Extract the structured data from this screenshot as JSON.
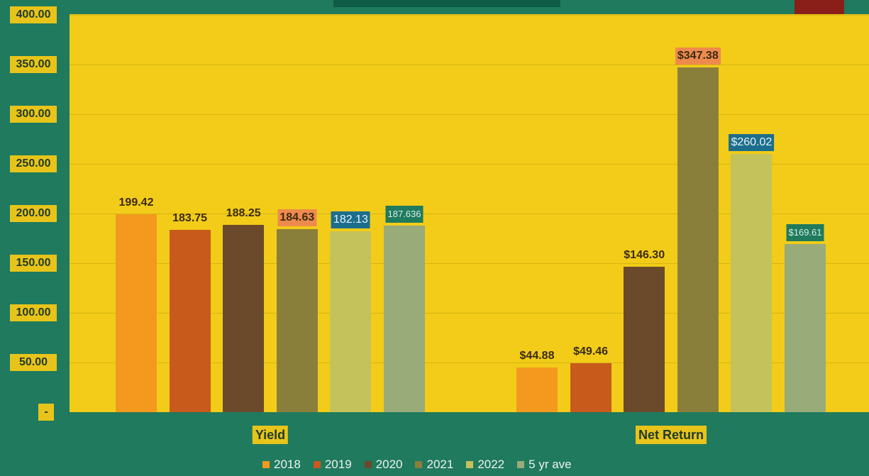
{
  "chart_data": {
    "type": "bar",
    "categories": [
      "Yield",
      "Net Return"
    ],
    "ylim": [
      0,
      400
    ],
    "yticks": [
      "400.00",
      "350.00",
      "300.00",
      "250.00",
      "200.00",
      "150.00",
      "100.00",
      "50.00",
      "-"
    ],
    "ytick_values": [
      400,
      350,
      300,
      250,
      200,
      150,
      100,
      50,
      0
    ],
    "grid": true,
    "legend_position": "bottom",
    "series": [
      {
        "name": "2018",
        "color": "#f39a1e",
        "values": [
          199.42,
          44.88
        ],
        "labels": [
          "199.42",
          "$44.88"
        ],
        "label_style": [
          "plain",
          "plain"
        ]
      },
      {
        "name": "2019",
        "color": "#c85a1c",
        "values": [
          183.75,
          49.46
        ],
        "labels": [
          "183.75",
          "$49.46"
        ],
        "label_style": [
          "plain",
          "plain"
        ]
      },
      {
        "name": "2020",
        "color": "#6a4a2a",
        "values": [
          188.25,
          146.3
        ],
        "labels": [
          "188.25",
          "$146.30"
        ],
        "label_style": [
          "plain",
          "plain"
        ]
      },
      {
        "name": "2021",
        "color": "#8a7f3a",
        "values": [
          184.63,
          347.38
        ],
        "labels": [
          "184.63",
          "$347.38"
        ],
        "label_style": [
          "boxed-orange",
          "boxed-orange"
        ]
      },
      {
        "name": "2022",
        "color": "#c4c25a",
        "values": [
          182.13,
          260.02
        ],
        "labels": [
          "182.13",
          "$260.02"
        ],
        "label_style": [
          "boxed-blue",
          "boxed-blue"
        ]
      },
      {
        "name": "5 yr ave",
        "color": "#9aab7a",
        "values": [
          187.636,
          169.61
        ],
        "labels": [
          "187.636",
          "$169.61"
        ],
        "label_style": [
          "boxed-teal",
          "boxed-teal"
        ]
      }
    ]
  },
  "colors": {
    "background": "#1f7a5e",
    "plot_area": "#f2cc18",
    "tick_box": "#e8c41a",
    "top_left_block": "#0e5c46",
    "top_right_block": "#8a1f1a"
  }
}
